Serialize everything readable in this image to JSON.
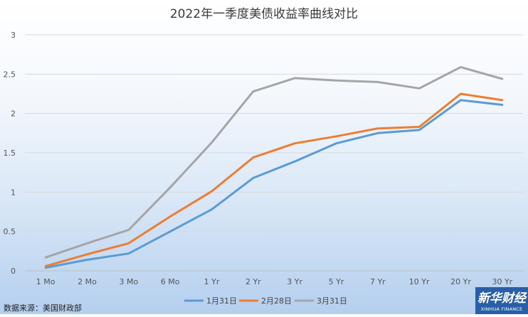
{
  "chart_data": {
    "type": "line",
    "title": "2022年一季度美债收益率曲线对比",
    "categories": [
      "1 Mo",
      "2 Mo",
      "3 Mo",
      "6 Mo",
      "1 Yr",
      "2 Yr",
      "3 Yr",
      "5 Yr",
      "7 Yr",
      "10 Yr",
      "20 Yr",
      "30 Yr"
    ],
    "y_ticks": [
      "0",
      "0.5",
      "1",
      "1.5",
      "2",
      "2.5",
      "3"
    ],
    "ylim": [
      0,
      3
    ],
    "grid": true,
    "legend_position": "bottom",
    "series": [
      {
        "name": "1月31日",
        "color": "#5b9bd5",
        "values": [
          0.04,
          0.14,
          0.22,
          0.5,
          0.78,
          1.18,
          1.39,
          1.62,
          1.75,
          1.79,
          2.17,
          2.11
        ]
      },
      {
        "name": "2月28日",
        "color": "#ed7d31",
        "values": [
          0.06,
          0.21,
          0.35,
          0.69,
          1.01,
          1.44,
          1.62,
          1.71,
          1.81,
          1.83,
          2.25,
          2.17
        ]
      },
      {
        "name": "3月31日",
        "color": "#a5a5a5",
        "values": [
          0.17,
          0.35,
          0.52,
          1.06,
          1.63,
          2.28,
          2.45,
          2.42,
          2.4,
          2.32,
          2.59,
          2.44
        ]
      }
    ]
  },
  "source": "数据来源：美国财政部",
  "logo": {
    "main": "新华财经",
    "sub": "XINHUA FINANCE",
    "color": "#2a5fa8"
  }
}
